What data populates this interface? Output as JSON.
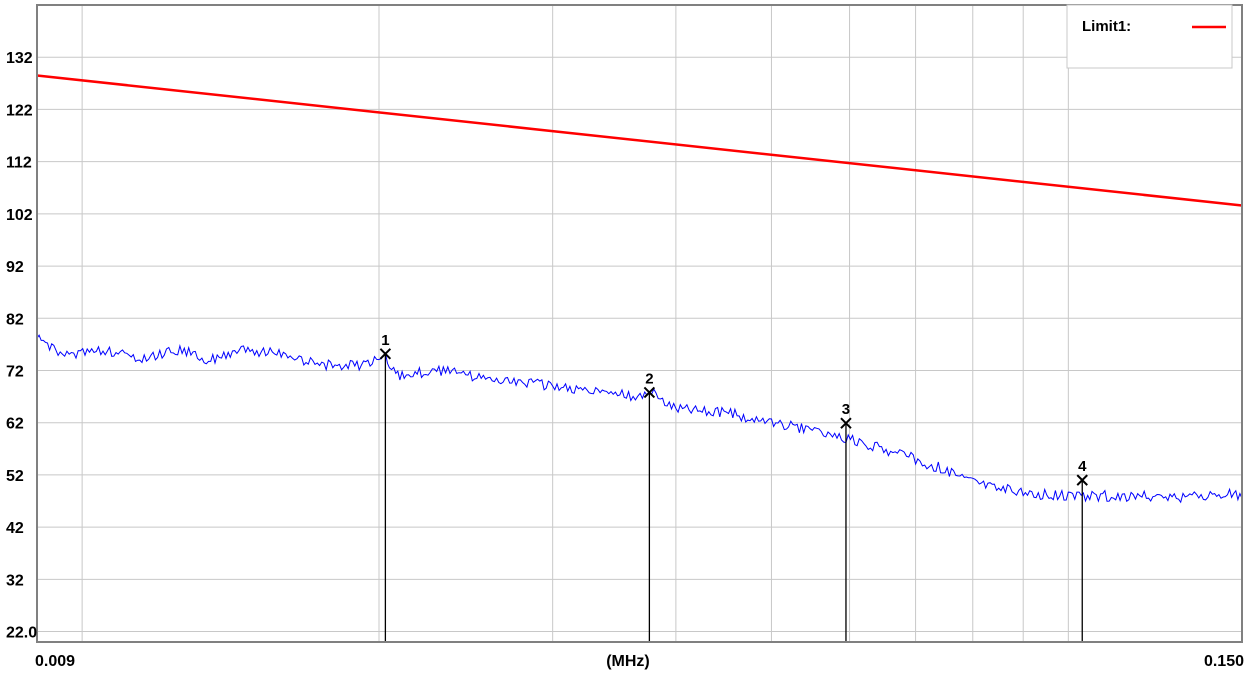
{
  "chart_data": {
    "type": "line",
    "title": "",
    "xlabel": "(MHz)",
    "ylabel": "",
    "x_scale": "log",
    "xlim": [
      0.009,
      0.15
    ],
    "ylim": [
      20,
      142
    ],
    "x_tick_labels": [
      "0.009",
      "0.150"
    ],
    "y_tick_labels": [
      "22.0",
      "32",
      "42",
      "52",
      "62",
      "72",
      "82",
      "92",
      "102",
      "112",
      "122",
      "132"
    ],
    "y_tick_values": [
      22,
      32,
      42,
      52,
      62,
      72,
      82,
      92,
      102,
      112,
      122,
      132
    ],
    "x_gridlines": [
      0.01,
      0.02,
      0.03,
      0.04,
      0.05,
      0.06,
      0.07,
      0.08,
      0.09,
      0.1
    ],
    "grid": true,
    "legend": {
      "placement": "top-right",
      "entries": [
        {
          "label": "Limit1:",
          "color": "#ff0000"
        }
      ]
    },
    "series": [
      {
        "name": "Limit1:",
        "color": "#ff0000",
        "points": [
          [
            0.009,
            128.5
          ],
          [
            0.15,
            103.6
          ]
        ]
      },
      {
        "color": "#0000ff",
        "points": [
          [
            0.009,
            78
          ],
          [
            0.0095,
            75
          ],
          [
            0.0105,
            76
          ],
          [
            0.0115,
            74
          ],
          [
            0.0125,
            76
          ],
          [
            0.0135,
            74
          ],
          [
            0.0145,
            76
          ],
          [
            0.016,
            75
          ],
          [
            0.0175,
            73
          ],
          [
            0.019,
            73
          ],
          [
            0.0203,
            74.5
          ],
          [
            0.021,
            71
          ],
          [
            0.023,
            72
          ],
          [
            0.025,
            71
          ],
          [
            0.027,
            70
          ],
          [
            0.03,
            69
          ],
          [
            0.033,
            68
          ],
          [
            0.036,
            67
          ],
          [
            0.0376,
            68
          ],
          [
            0.04,
            65
          ],
          [
            0.045,
            64
          ],
          [
            0.05,
            62
          ],
          [
            0.055,
            60.5
          ],
          [
            0.0595,
            59
          ],
          [
            0.065,
            57
          ],
          [
            0.07,
            55
          ],
          [
            0.075,
            53
          ],
          [
            0.08,
            51
          ],
          [
            0.085,
            49.5
          ],
          [
            0.09,
            48.5
          ],
          [
            0.1,
            48
          ],
          [
            0.11,
            48
          ],
          [
            0.12,
            48
          ],
          [
            0.13,
            47.5
          ],
          [
            0.14,
            48
          ],
          [
            0.145,
            49
          ],
          [
            0.15,
            47.5
          ]
        ]
      }
    ],
    "markers": [
      {
        "label": "1",
        "x": 0.0203,
        "y": 75.2
      },
      {
        "label": "2",
        "x": 0.0376,
        "y": 67.8
      },
      {
        "label": "3",
        "x": 0.0595,
        "y": 61.9
      },
      {
        "label": "4",
        "x": 0.1033,
        "y": 51.0
      }
    ]
  }
}
